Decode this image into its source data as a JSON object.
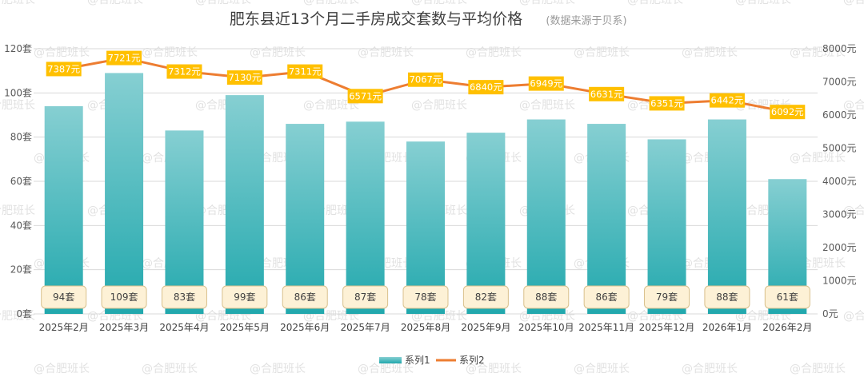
{
  "chart_data": {
    "type": "bar-line-combo",
    "title": "肥东县近13个月二手房成交套数与平均价格",
    "subtitle": "(数据来源于贝系)",
    "categories": [
      "2025年2月",
      "2025年3月",
      "2025年4月",
      "2025年5月",
      "2025年6月",
      "2025年7月",
      "2025年8月",
      "2025年9月",
      "2025年10月",
      "2025年11月",
      "2025年12月",
      "2026年1月",
      "2026年2月"
    ],
    "series": [
      {
        "name": "系列1",
        "type": "bar",
        "axis": "left",
        "values": [
          94,
          109,
          83,
          99,
          86,
          87,
          78,
          82,
          88,
          86,
          79,
          88,
          61
        ],
        "labels": [
          "94套",
          "109套",
          "83套",
          "99套",
          "86套",
          "87套",
          "78套",
          "82套",
          "88套",
          "86套",
          "79套",
          "88套",
          "61套"
        ]
      },
      {
        "name": "系列2",
        "type": "line",
        "axis": "right",
        "values": [
          7387,
          7721,
          7312,
          7130,
          7311,
          6571,
          7067,
          6840,
          6949,
          6631,
          6351,
          6442,
          6092
        ],
        "labels": [
          "7387元",
          "7721元",
          "7312元",
          "7130元",
          "7311元",
          "6571元",
          "7067元",
          "6840元",
          "6949元",
          "6631元",
          "6351元",
          "6442元",
          "6092元"
        ]
      }
    ],
    "y_left": {
      "range": [
        0,
        120
      ],
      "ticks": [
        "0套",
        "20套",
        "40套",
        "60套",
        "80套",
        "100套",
        "120套"
      ]
    },
    "y_right": {
      "range": [
        0,
        8000
      ],
      "ticks": [
        "0元",
        "1000元",
        "2000元",
        "3000元",
        "4000元",
        "5000元",
        "6000元",
        "7000元",
        "8000元"
      ]
    },
    "grid": true,
    "legend_position": "bottom-center",
    "watermark": "@合肥班长",
    "colors": {
      "bar_top": "#86cfd2",
      "bar_bottom": "#21a8ad",
      "line": "#ed7d31",
      "price_label_bg": "#ffc000",
      "count_label_bg": "#fdf1d6",
      "count_label_border": "#d9c08c",
      "grid": "#d9d9d9"
    }
  }
}
